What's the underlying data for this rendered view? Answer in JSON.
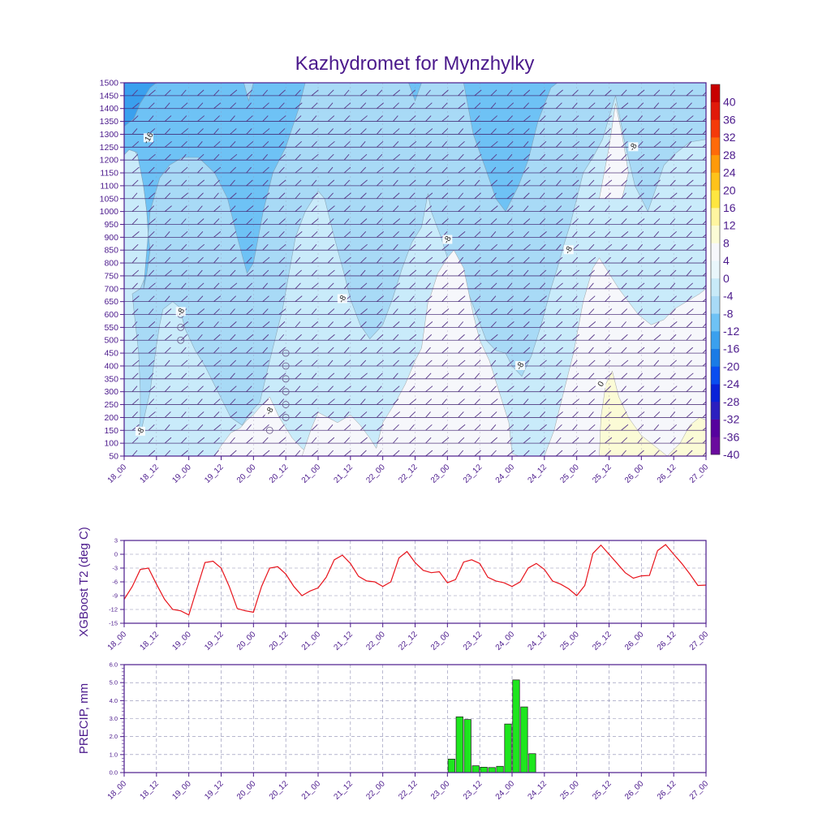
{
  "title": "Kazhydromet for Mynzhylky",
  "colors": {
    "axis": "#4b1a8c",
    "title": "#4b1a8c",
    "temp_line": "#e8141c",
    "precip_bar": "#1ee61e",
    "wind_barb": "#5a3a8a"
  },
  "chart_data": [
    {
      "type": "heatmap",
      "name": "cross-section",
      "x_categories": [
        "18_00",
        "18_12",
        "19_00",
        "19_12",
        "20_00",
        "20_12",
        "21_00",
        "21_12",
        "22_00",
        "22_12",
        "23_00",
        "23_12",
        "24_00",
        "24_12",
        "25_00",
        "25_12",
        "26_00",
        "26_12",
        "27_00"
      ],
      "y_ticks": [
        50,
        100,
        150,
        200,
        250,
        300,
        350,
        400,
        450,
        500,
        550,
        600,
        650,
        700,
        750,
        800,
        850,
        900,
        950,
        1000,
        1050,
        1100,
        1150,
        1200,
        1250,
        1300,
        1350,
        1400,
        1450,
        1500
      ],
      "ylim": [
        50,
        1500
      ],
      "contour_labels": [
        {
          "text": "-16",
          "x": 0.75,
          "y": 1285
        },
        {
          "text": "-8",
          "x": 1.75,
          "y": 610
        },
        {
          "text": "-8",
          "x": 0.5,
          "y": 145
        },
        {
          "text": "-8",
          "x": 4.5,
          "y": 225
        },
        {
          "text": "-8",
          "x": 6.75,
          "y": 660
        },
        {
          "text": "-8",
          "x": 10.0,
          "y": 890
        },
        {
          "text": "-8",
          "x": 13.75,
          "y": 850
        },
        {
          "text": "-8",
          "x": 12.25,
          "y": 400
        },
        {
          "text": "-8",
          "x": 15.75,
          "y": 1250
        },
        {
          "text": "0",
          "x": 14.75,
          "y": 330
        }
      ],
      "colorbar": {
        "levels": [
          "40",
          "36",
          "32",
          "28",
          "24",
          "20",
          "16",
          "12",
          "8",
          "4",
          "0",
          "-4",
          "-8",
          "-12",
          "-16",
          "-20",
          "-24",
          "-28",
          "-32",
          "-36",
          "-40"
        ],
        "colors": [
          "#6a0b9e",
          "#56029e",
          "#2b1fbf",
          "#0a22d8",
          "#0a4df0",
          "#1a7be6",
          "#3aa0ee",
          "#6ec2f5",
          "#a8daf6",
          "#c8eaf8",
          "#e9f6fb",
          "#f6f7fb",
          "#fbfbd6",
          "#fff5a0",
          "#ffe640",
          "#ffc21a",
          "#ff9a0a",
          "#ff6a0a",
          "#f43a0a",
          "#e01a0a",
          "#c80000"
        ]
      }
    },
    {
      "type": "line",
      "name": "temperature",
      "ylabel": "XGBoost T2 (deg C)",
      "ylim": [
        -15,
        3
      ],
      "y_ticks": [
        "3",
        "0",
        "-3",
        "-6",
        "-9",
        "-12",
        "-15"
      ],
      "x_categories": [
        "18_00",
        "18_12",
        "19_00",
        "19_12",
        "20_00",
        "20_12",
        "21_00",
        "21_12",
        "22_00",
        "22_12",
        "23_00",
        "23_12",
        "24_00",
        "24_12",
        "25_00",
        "25_12",
        "26_00",
        "26_12",
        "27_00"
      ],
      "x": [
        0,
        0.25,
        0.5,
        0.75,
        1,
        1.25,
        1.5,
        1.75,
        2,
        2.25,
        2.5,
        2.75,
        3,
        3.25,
        3.5,
        3.75,
        4,
        4.25,
        4.5,
        4.75,
        5,
        5.25,
        5.5,
        5.75,
        6,
        6.25,
        6.5,
        6.75,
        7,
        7.25,
        7.5,
        7.75,
        8,
        8.25,
        8.5,
        8.75,
        9,
        9.25,
        9.5,
        9.75,
        10,
        10.25,
        10.5,
        10.75,
        11,
        11.25,
        11.5,
        11.75,
        12,
        12.25,
        12.5,
        12.75,
        13,
        13.25,
        13.5,
        13.75,
        14,
        14.25,
        14.5,
        14.75,
        15,
        15.25,
        15.5,
        15.75,
        16,
        16.25,
        16.5,
        16.75,
        17,
        17.25,
        17.5,
        17.75,
        18
      ],
      "values": [
        -9.8,
        -7.0,
        -3.3,
        -3.0,
        -6.5,
        -9.8,
        -12.0,
        -12.3,
        -13.2,
        -7.5,
        -1.8,
        -1.5,
        -3.0,
        -7.0,
        -11.8,
        -12.3,
        -12.6,
        -7.0,
        -3.0,
        -2.7,
        -4.3,
        -7.0,
        -9.0,
        -8.0,
        -7.3,
        -5.0,
        -1.2,
        -0.2,
        -2.0,
        -4.8,
        -5.8,
        -6.0,
        -7.0,
        -6.0,
        -0.8,
        0.6,
        -1.8,
        -3.5,
        -4.0,
        -3.8,
        -6.2,
        -5.5,
        -1.7,
        -1.2,
        -2.0,
        -5.0,
        -5.8,
        -6.2,
        -7.0,
        -6.0,
        -3.0,
        -2.0,
        -3.3,
        -5.8,
        -6.5,
        -7.5,
        -9.0,
        -6.8,
        0.2,
        2.0,
        0.0,
        -2.0,
        -4.0,
        -5.2,
        -4.7,
        -4.6,
        0.8,
        2.1,
        0.0,
        -2.0,
        -4.3,
        -6.8,
        -6.7
      ]
    },
    {
      "type": "bar",
      "name": "precipitation",
      "ylabel": "PRECIP, mm",
      "ylim": [
        0,
        6
      ],
      "y_ticks": [
        "0.0",
        "1.0",
        "2.0",
        "3.0",
        "4.0",
        "5.0",
        "6.0"
      ],
      "x_categories": [
        "18_00",
        "18_12",
        "19_00",
        "19_12",
        "20_00",
        "20_12",
        "21_00",
        "21_12",
        "22_00",
        "22_12",
        "23_00",
        "23_12",
        "24_00",
        "24_12",
        "25_00",
        "25_12",
        "26_00",
        "26_12",
        "27_00"
      ],
      "bars": [
        {
          "x": 10.0,
          "value": 0.75
        },
        {
          "x": 10.25,
          "value": 3.1
        },
        {
          "x": 10.5,
          "value": 2.95
        },
        {
          "x": 10.75,
          "value": 0.38
        },
        {
          "x": 11.0,
          "value": 0.3
        },
        {
          "x": 11.25,
          "value": 0.28
        },
        {
          "x": 11.5,
          "value": 0.35
        },
        {
          "x": 11.75,
          "value": 2.7
        },
        {
          "x": 12.0,
          "value": 5.15
        },
        {
          "x": 12.25,
          "value": 3.65
        },
        {
          "x": 12.5,
          "value": 1.05
        }
      ]
    }
  ]
}
